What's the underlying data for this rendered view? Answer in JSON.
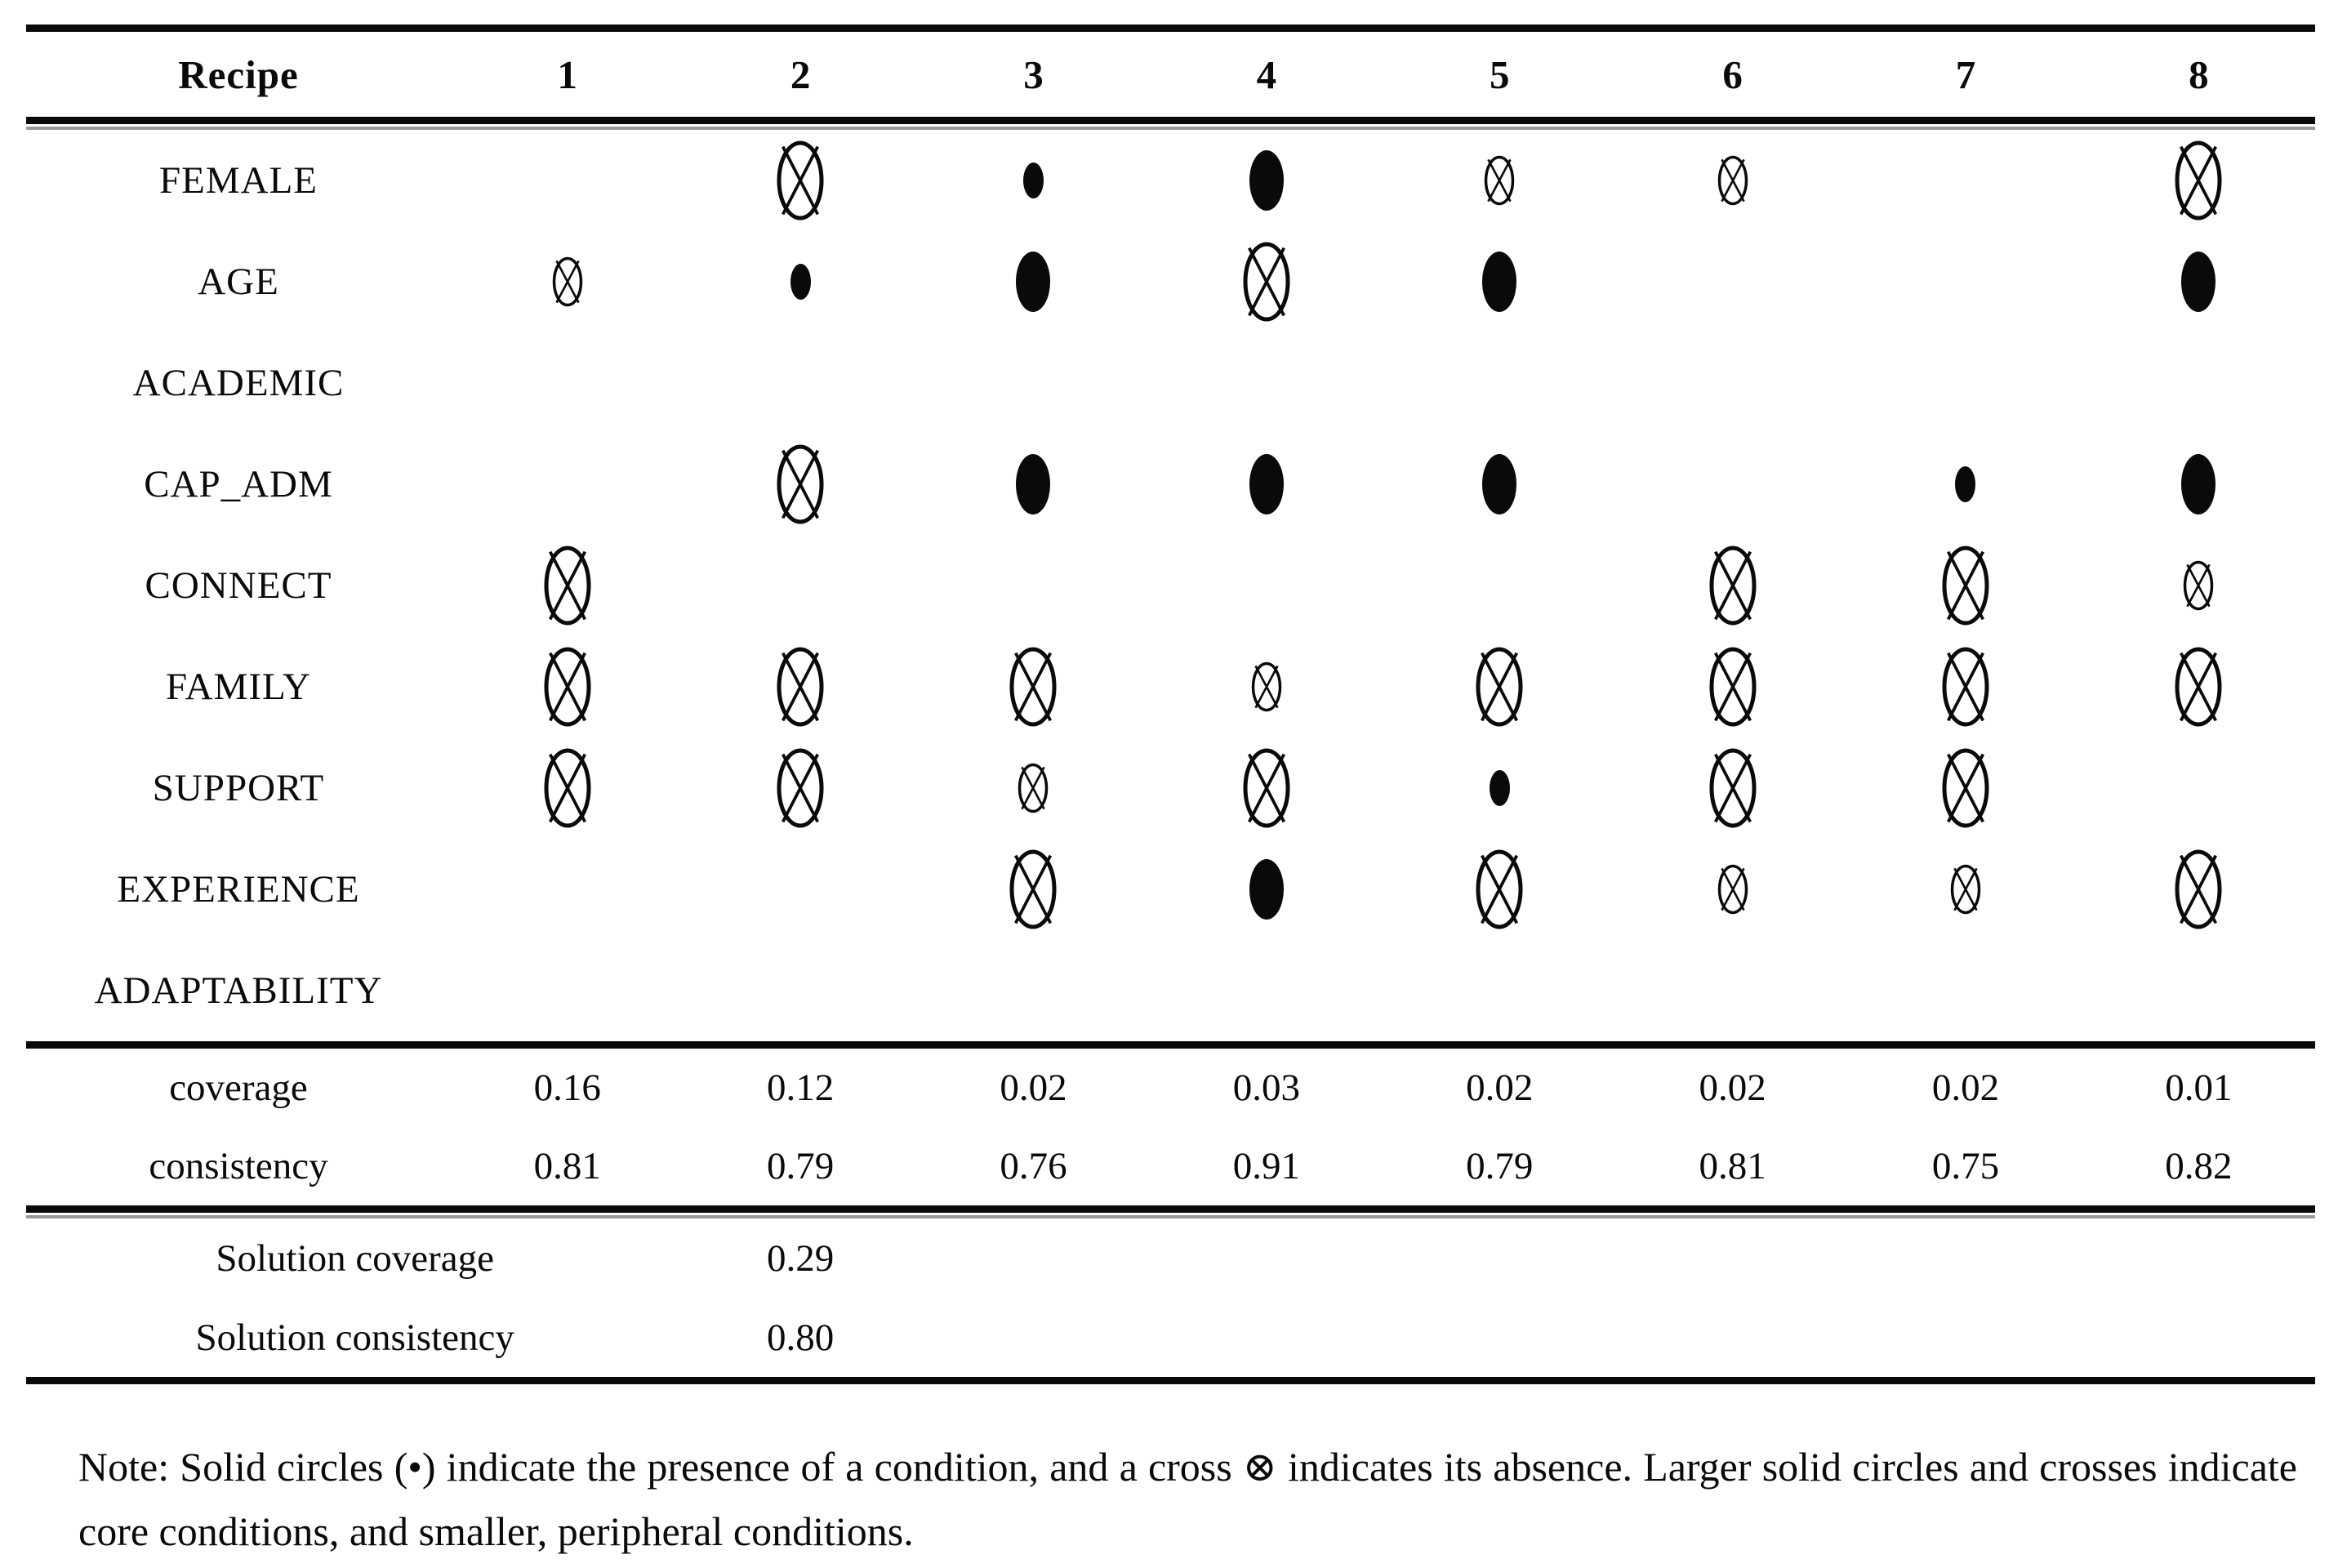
{
  "table": {
    "header": {
      "label": "Recipe",
      "columns": [
        "1",
        "2",
        "3",
        "4",
        "5",
        "6",
        "7",
        "8"
      ]
    },
    "condition_rows": [
      {
        "label": "FEMALE",
        "cells": [
          "",
          "cross-core",
          "dot-peripheral",
          "dot-core",
          "cross-peripheral",
          "cross-peripheral",
          "",
          "cross-core"
        ]
      },
      {
        "label": "AGE",
        "cells": [
          "cross-peripheral",
          "dot-peripheral",
          "dot-core",
          "cross-core",
          "dot-core",
          "",
          "",
          "dot-core"
        ]
      },
      {
        "label": "ACADEMIC",
        "cells": [
          "",
          "",
          "",
          "",
          "",
          "",
          "",
          ""
        ]
      },
      {
        "label": "CAP_ADM",
        "cells": [
          "",
          "cross-core",
          "dot-core",
          "dot-core",
          "dot-core",
          "",
          "dot-peripheral",
          "dot-core"
        ]
      },
      {
        "label": "CONNECT",
        "cells": [
          "cross-core",
          "",
          "",
          "",
          "",
          "cross-core",
          "cross-core",
          "cross-peripheral"
        ]
      },
      {
        "label": "FAMILY",
        "cells": [
          "cross-core",
          "cross-core",
          "cross-core",
          "cross-peripheral",
          "cross-core",
          "cross-core",
          "cross-core",
          "cross-core"
        ]
      },
      {
        "label": "SUPPORT",
        "cells": [
          "cross-core",
          "cross-core",
          "cross-peripheral",
          "cross-core",
          "dot-peripheral",
          "cross-core",
          "cross-core",
          ""
        ]
      },
      {
        "label": "EXPERIENCE",
        "cells": [
          "",
          "",
          "cross-core",
          "dot-core",
          "cross-core",
          "cross-peripheral",
          "cross-peripheral",
          "cross-core"
        ]
      },
      {
        "label": "ADAPTABILITY",
        "cells": [
          "",
          "",
          "",
          "",
          "",
          "",
          "",
          ""
        ]
      }
    ],
    "stat_rows": [
      {
        "label": "coverage",
        "values": [
          "0.16",
          "0.12",
          "0.02",
          "0.03",
          "0.02",
          "0.02",
          "0.02",
          "0.01"
        ]
      },
      {
        "label": "consistency",
        "values": [
          "0.81",
          "0.79",
          "0.76",
          "0.91",
          "0.79",
          "0.81",
          "0.75",
          "0.82"
        ]
      }
    ],
    "solution_rows": [
      {
        "label": "Solution coverage",
        "value": "0.29"
      },
      {
        "label": "Solution consistency",
        "value": "0.80"
      }
    ]
  },
  "legend": {
    "presence_symbol": "•",
    "absence_symbol": "⊗",
    "presence_meaning": "presence of a condition",
    "absence_meaning": "absence of a condition",
    "core_meaning": "larger symbols = core conditions",
    "peripheral_meaning": "smaller symbols = peripheral conditions"
  },
  "note": {
    "text": "Note: Solid circles (•) indicate the presence of a condition, and a cross ⊗ indicates its absence. Larger solid circles and crosses indicate core conditions, and smaller, peripheral conditions."
  }
}
